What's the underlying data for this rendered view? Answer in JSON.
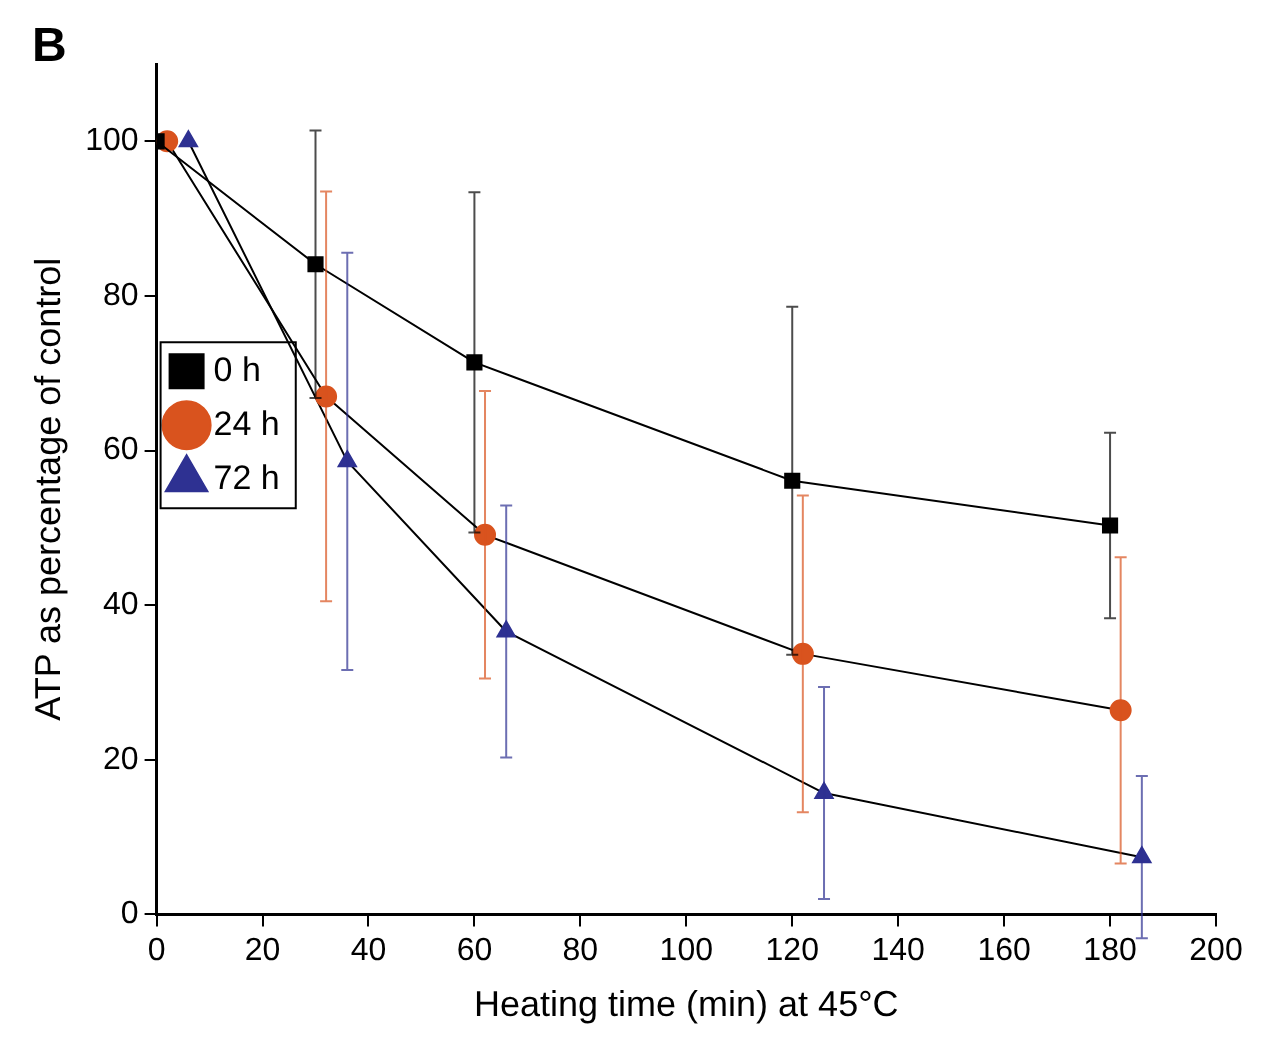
{
  "chart_data": {
    "type": "line",
    "xlabel": "Heating time (min) at 45°C",
    "ylabel": "ATP as percentage of control",
    "annotations": [
      "B"
    ],
    "xlim": [
      0,
      200
    ],
    "xticks": [
      0,
      20,
      40,
      60,
      80,
      100,
      120,
      140,
      160,
      180,
      200
    ],
    "ylim": [
      0,
      110
    ],
    "yticks": [
      0,
      20,
      40,
      60,
      80,
      100
    ],
    "grid": false,
    "legend": "top",
    "line_style": "solid",
    "series": [
      {
        "name": "0 h",
        "color": "#000000",
        "marker": "square",
        "x": [
          0,
          30,
          60,
          120,
          180
        ],
        "values": [
          100,
          84.1,
          71.4,
          56.1,
          50.3
        ],
        "errors": [
          null,
          17.3,
          22,
          22.5,
          12
        ]
      },
      {
        "name": "24 h",
        "color": "#d9531e",
        "marker": "circle",
        "x": [
          2,
          32,
          62,
          122,
          182
        ],
        "values": [
          100,
          67,
          49.1,
          33.7,
          26.4
        ],
        "errors": [
          null,
          26.5,
          18.6,
          20.5,
          19.8
        ]
      },
      {
        "name": "72 h",
        "color": "#2e3192",
        "marker": "triangle",
        "x": [
          6,
          36,
          66,
          126,
          186
        ],
        "values": [
          100,
          58.6,
          36.6,
          15.7,
          7.4
        ],
        "errors": [
          null,
          27,
          16.3,
          13.7,
          10.5
        ]
      }
    ]
  }
}
